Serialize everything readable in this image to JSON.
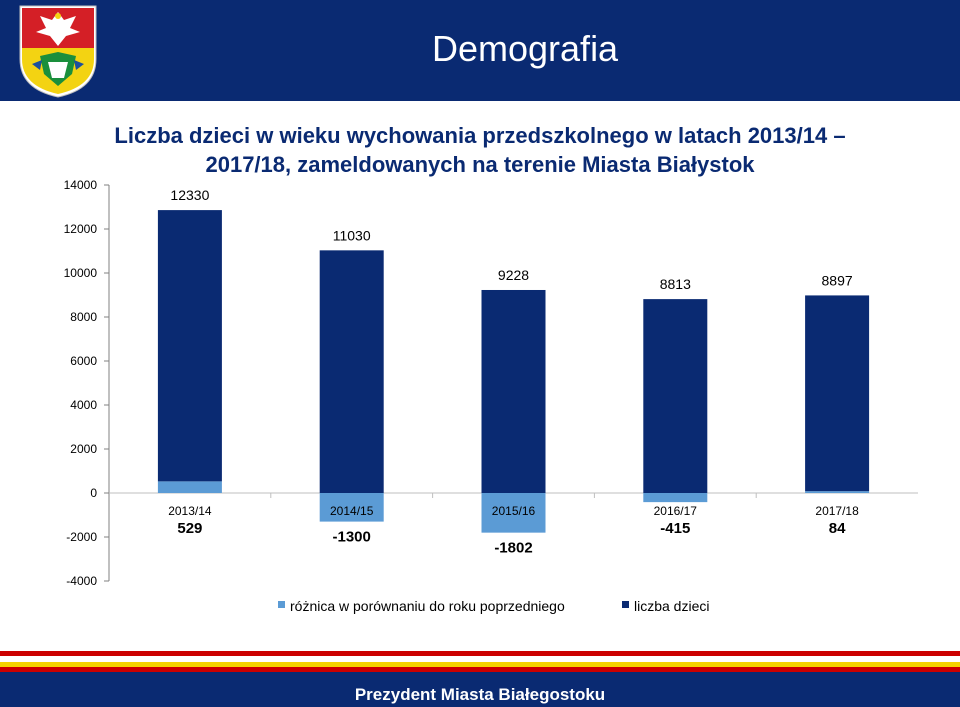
{
  "slide": {
    "title": "Demografia",
    "footer": "Prezydent Miasta Białegostoku"
  },
  "colors": {
    "header_bg": "#0a2a72",
    "total_bar": "#0a2a72",
    "difference_bar": "#5b9bd5",
    "title_text": "#0a2a72",
    "footer_red": "#cc0000",
    "footer_yellow": "#f5d400"
  },
  "chart_data": {
    "type": "bar",
    "stacked": true,
    "title": "Liczba dzieci w wieku wychowania przedszkolnego w latach 2013/14 – 2017/18, zameldowanych na terenie Miasta Białystok",
    "title_lines": [
      "Liczba dzieci w wieku wychowania przedszkolnego w latach 2013/14 –",
      "2017/18, zameldowanych na terenie Miasta Białystok"
    ],
    "categories": [
      "2013/14",
      "2014/15",
      "2015/16",
      "2016/17",
      "2017/18"
    ],
    "series": [
      {
        "name": "różnica w porównaniu do roku poprzedniego",
        "values": [
          529,
          -1300,
          -1802,
          -415,
          84
        ],
        "labels": [
          "529",
          "-1300",
          "-1802",
          "-415",
          "84"
        ]
      },
      {
        "name": "liczba dzieci",
        "values": [
          12330,
          11030,
          9228,
          8813,
          8897
        ],
        "labels": [
          "12330",
          "11030",
          "9228",
          "8813",
          "8897"
        ]
      }
    ],
    "ylim": [
      -4000,
      14000
    ],
    "yticks": [
      -4000,
      -2000,
      0,
      2000,
      4000,
      6000,
      8000,
      10000,
      12000,
      14000
    ],
    "ytick_labels": [
      "-4000",
      "-2000",
      "0",
      "2000",
      "4000",
      "6000",
      "8000",
      "10000",
      "12000",
      "14000"
    ],
    "xlabel": "",
    "ylabel": "",
    "grid": false,
    "legend_position": "bottom"
  }
}
